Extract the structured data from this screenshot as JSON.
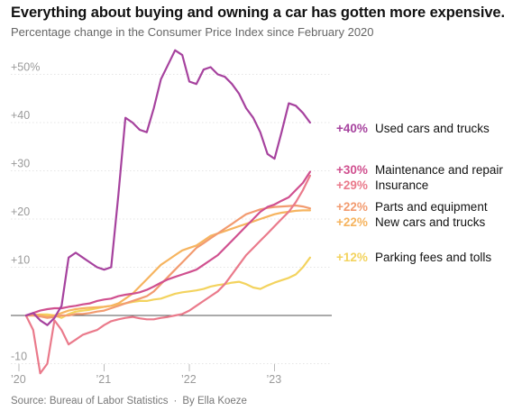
{
  "title": "Everything about buying and owning a car has gotten more expensive.",
  "subtitle": "Percentage change in the Consumer Price Index since February 2020",
  "source": {
    "text": "Source: Bureau of Labor Statistics",
    "byline": "By Ella Koeze"
  },
  "chart_data": {
    "type": "line",
    "title": "Everything about buying and owning a car has gotten more expensive.",
    "subtitle": "Percentage change in the Consumer Price Index since February 2020",
    "xlabel": "",
    "ylabel": "",
    "xlim": [
      2020.083,
      2023.667
    ],
    "ylim": [
      -12,
      57
    ],
    "grid": true,
    "legend": "direct labels at line ends (right)",
    "y_ticks": [
      {
        "value": 50,
        "label": "+50%"
      },
      {
        "value": 40,
        "label": "+40"
      },
      {
        "value": 30,
        "label": "+30"
      },
      {
        "value": 20,
        "label": "+20"
      },
      {
        "value": 10,
        "label": "+10"
      },
      {
        "value": -10,
        "label": "-10"
      }
    ],
    "x_ticks": [
      {
        "value": 2020,
        "label": "’20"
      },
      {
        "value": 2021,
        "label": "’21"
      },
      {
        "value": 2022,
        "label": "’22"
      },
      {
        "value": 2023,
        "label": "’23"
      }
    ],
    "series": [
      {
        "name": "Used cars and trucks",
        "end_label": "+40%",
        "color": "#a6429e",
        "points": [
          [
            2020.083,
            0
          ],
          [
            2020.167,
            0.5
          ],
          [
            2020.25,
            -1
          ],
          [
            2020.333,
            -2
          ],
          [
            2020.417,
            -0.5
          ],
          [
            2020.5,
            2
          ],
          [
            2020.583,
            12
          ],
          [
            2020.667,
            13
          ],
          [
            2020.75,
            12
          ],
          [
            2020.833,
            11
          ],
          [
            2020.917,
            10
          ],
          [
            2021,
            9.5
          ],
          [
            2021.083,
            10
          ],
          [
            2021.167,
            25
          ],
          [
            2021.25,
            41
          ],
          [
            2021.333,
            40
          ],
          [
            2021.417,
            38.5
          ],
          [
            2021.5,
            38
          ],
          [
            2021.583,
            43
          ],
          [
            2021.667,
            49
          ],
          [
            2021.75,
            52
          ],
          [
            2021.833,
            55
          ],
          [
            2021.917,
            54
          ],
          [
            2022,
            48.5
          ],
          [
            2022.083,
            48
          ],
          [
            2022.167,
            51
          ],
          [
            2022.25,
            51.5
          ],
          [
            2022.333,
            50
          ],
          [
            2022.417,
            49.5
          ],
          [
            2022.5,
            48
          ],
          [
            2022.583,
            46
          ],
          [
            2022.667,
            43
          ],
          [
            2022.75,
            41
          ],
          [
            2022.833,
            38
          ],
          [
            2022.917,
            33.5
          ],
          [
            2023,
            32.5
          ],
          [
            2023.083,
            38
          ],
          [
            2023.167,
            44
          ],
          [
            2023.25,
            43.5
          ],
          [
            2023.333,
            42
          ],
          [
            2023.417,
            40
          ]
        ]
      },
      {
        "name": "Maintenance and repair",
        "end_label": "+30%",
        "color": "#d0508f",
        "points": [
          [
            2020.083,
            0
          ],
          [
            2020.167,
            0.5
          ],
          [
            2020.25,
            1
          ],
          [
            2020.333,
            1.3
          ],
          [
            2020.417,
            1.5
          ],
          [
            2020.5,
            1.5
          ],
          [
            2020.583,
            1.8
          ],
          [
            2020.667,
            2
          ],
          [
            2020.75,
            2.3
          ],
          [
            2020.833,
            2.5
          ],
          [
            2020.917,
            3
          ],
          [
            2021,
            3.3
          ],
          [
            2021.083,
            3.5
          ],
          [
            2021.167,
            4
          ],
          [
            2021.25,
            4.3
          ],
          [
            2021.333,
            4.5
          ],
          [
            2021.417,
            4.8
          ],
          [
            2021.5,
            5.3
          ],
          [
            2021.583,
            6
          ],
          [
            2021.667,
            6.8
          ],
          [
            2021.75,
            7.5
          ],
          [
            2021.833,
            8
          ],
          [
            2021.917,
            8.5
          ],
          [
            2022,
            9
          ],
          [
            2022.083,
            9.5
          ],
          [
            2022.167,
            10.5
          ],
          [
            2022.25,
            11.5
          ],
          [
            2022.333,
            12.5
          ],
          [
            2022.417,
            14
          ],
          [
            2022.5,
            15.5
          ],
          [
            2022.583,
            17
          ],
          [
            2022.667,
            18.5
          ],
          [
            2022.75,
            20
          ],
          [
            2022.833,
            21.5
          ],
          [
            2022.917,
            22.5
          ],
          [
            2023,
            23
          ],
          [
            2023.083,
            23.8
          ],
          [
            2023.167,
            24.5
          ],
          [
            2023.25,
            26
          ],
          [
            2023.333,
            27.5
          ],
          [
            2023.417,
            29.8
          ]
        ]
      },
      {
        "name": "Insurance",
        "end_label": "+29%",
        "color": "#ea7a8b",
        "points": [
          [
            2020.083,
            0
          ],
          [
            2020.167,
            -3
          ],
          [
            2020.25,
            -12
          ],
          [
            2020.333,
            -10
          ],
          [
            2020.417,
            -1
          ],
          [
            2020.5,
            -3
          ],
          [
            2020.583,
            -6
          ],
          [
            2020.667,
            -5
          ],
          [
            2020.75,
            -4
          ],
          [
            2020.833,
            -3.5
          ],
          [
            2020.917,
            -3
          ],
          [
            2021,
            -2
          ],
          [
            2021.083,
            -1.2
          ],
          [
            2021.167,
            -0.8
          ],
          [
            2021.25,
            -0.5
          ],
          [
            2021.333,
            -0.3
          ],
          [
            2021.417,
            -0.6
          ],
          [
            2021.5,
            -0.8
          ],
          [
            2021.583,
            -0.8
          ],
          [
            2021.667,
            -0.5
          ],
          [
            2021.75,
            -0.3
          ],
          [
            2021.833,
            0
          ],
          [
            2021.917,
            0.3
          ],
          [
            2022,
            1
          ],
          [
            2022.083,
            2
          ],
          [
            2022.167,
            3
          ],
          [
            2022.25,
            4
          ],
          [
            2022.333,
            5
          ],
          [
            2022.417,
            6.5
          ],
          [
            2022.5,
            8.5
          ],
          [
            2022.583,
            10.5
          ],
          [
            2022.667,
            12.5
          ],
          [
            2022.75,
            14
          ],
          [
            2022.833,
            15.5
          ],
          [
            2022.917,
            17
          ],
          [
            2023,
            18.5
          ],
          [
            2023.083,
            20
          ],
          [
            2023.167,
            21.5
          ],
          [
            2023.25,
            23.5
          ],
          [
            2023.333,
            26
          ],
          [
            2023.417,
            29
          ]
        ]
      },
      {
        "name": "Parts and equipment",
        "end_label": "+22%",
        "color": "#f29b70",
        "points": [
          [
            2020.083,
            0
          ],
          [
            2020.167,
            0
          ],
          [
            2020.25,
            -0.2
          ],
          [
            2020.333,
            -0.5
          ],
          [
            2020.417,
            -0.3
          ],
          [
            2020.5,
            0
          ],
          [
            2020.583,
            0
          ],
          [
            2020.667,
            0.3
          ],
          [
            2020.75,
            0.3
          ],
          [
            2020.833,
            0.5
          ],
          [
            2020.917,
            0.8
          ],
          [
            2021,
            1
          ],
          [
            2021.083,
            1.5
          ],
          [
            2021.167,
            2
          ],
          [
            2021.25,
            2.5
          ],
          [
            2021.333,
            3
          ],
          [
            2021.417,
            3.5
          ],
          [
            2021.5,
            4
          ],
          [
            2021.583,
            5
          ],
          [
            2021.667,
            6.5
          ],
          [
            2021.75,
            8
          ],
          [
            2021.833,
            9.5
          ],
          [
            2021.917,
            11
          ],
          [
            2022,
            12.5
          ],
          [
            2022.083,
            14
          ],
          [
            2022.167,
            15
          ],
          [
            2022.25,
            16
          ],
          [
            2022.333,
            17
          ],
          [
            2022.417,
            18
          ],
          [
            2022.5,
            19
          ],
          [
            2022.583,
            20
          ],
          [
            2022.667,
            21
          ],
          [
            2022.75,
            21.5
          ],
          [
            2022.833,
            22
          ],
          [
            2022.917,
            22.3
          ],
          [
            2023,
            22.5
          ],
          [
            2023.083,
            22.6
          ],
          [
            2023.167,
            22.7
          ],
          [
            2023.25,
            22.8
          ],
          [
            2023.333,
            22.6
          ],
          [
            2023.417,
            22.2
          ]
        ]
      },
      {
        "name": "New cars and trucks",
        "end_label": "+22%",
        "color": "#f6b45f",
        "points": [
          [
            2020.083,
            0
          ],
          [
            2020.167,
            0.2
          ],
          [
            2020.25,
            0.1
          ],
          [
            2020.333,
            -0.2
          ],
          [
            2020.417,
            0
          ],
          [
            2020.5,
            0.5
          ],
          [
            2020.583,
            1
          ],
          [
            2020.667,
            1.3
          ],
          [
            2020.75,
            1.5
          ],
          [
            2020.833,
            1.6
          ],
          [
            2020.917,
            1.7
          ],
          [
            2021,
            1.8
          ],
          [
            2021.083,
            2
          ],
          [
            2021.167,
            2.5
          ],
          [
            2021.25,
            3.5
          ],
          [
            2021.333,
            4.5
          ],
          [
            2021.417,
            6
          ],
          [
            2021.5,
            7.5
          ],
          [
            2021.583,
            9
          ],
          [
            2021.667,
            10.5
          ],
          [
            2021.75,
            11.5
          ],
          [
            2021.833,
            12.5
          ],
          [
            2021.917,
            13.5
          ],
          [
            2022,
            14
          ],
          [
            2022.083,
            14.5
          ],
          [
            2022.167,
            15.5
          ],
          [
            2022.25,
            16.5
          ],
          [
            2022.333,
            17
          ],
          [
            2022.417,
            17.5
          ],
          [
            2022.5,
            18
          ],
          [
            2022.583,
            18.5
          ],
          [
            2022.667,
            19
          ],
          [
            2022.75,
            19.5
          ],
          [
            2022.833,
            20
          ],
          [
            2022.917,
            20.5
          ],
          [
            2023,
            21
          ],
          [
            2023.083,
            21.3
          ],
          [
            2023.167,
            21.5
          ],
          [
            2023.25,
            21.7
          ],
          [
            2023.333,
            21.8
          ],
          [
            2023.417,
            21.8
          ]
        ]
      },
      {
        "name": "Parking fees and tolls",
        "end_label": "+12%",
        "color": "#f3d35e",
        "points": [
          [
            2020.083,
            0
          ],
          [
            2020.167,
            0
          ],
          [
            2020.25,
            0.2
          ],
          [
            2020.333,
            0.2
          ],
          [
            2020.417,
            0
          ],
          [
            2020.5,
            -0.5
          ],
          [
            2020.583,
            0.3
          ],
          [
            2020.667,
            0.8
          ],
          [
            2020.75,
            1
          ],
          [
            2020.833,
            1.2
          ],
          [
            2020.917,
            1.5
          ],
          [
            2021,
            1.8
          ],
          [
            2021.083,
            2
          ],
          [
            2021.167,
            2.3
          ],
          [
            2021.25,
            2.5
          ],
          [
            2021.333,
            2.8
          ],
          [
            2021.417,
            3
          ],
          [
            2021.5,
            3
          ],
          [
            2021.583,
            3.3
          ],
          [
            2021.667,
            3.5
          ],
          [
            2021.75,
            4
          ],
          [
            2021.833,
            4.5
          ],
          [
            2021.917,
            4.8
          ],
          [
            2022,
            5
          ],
          [
            2022.083,
            5.2
          ],
          [
            2022.167,
            5.5
          ],
          [
            2022.25,
            6
          ],
          [
            2022.333,
            6.3
          ],
          [
            2022.417,
            6.5
          ],
          [
            2022.5,
            6.8
          ],
          [
            2022.583,
            7
          ],
          [
            2022.667,
            6.5
          ],
          [
            2022.75,
            5.8
          ],
          [
            2022.833,
            5.5
          ],
          [
            2022.917,
            6.2
          ],
          [
            2023,
            6.8
          ],
          [
            2023.083,
            7.3
          ],
          [
            2023.167,
            7.8
          ],
          [
            2023.25,
            8.5
          ],
          [
            2023.333,
            10
          ],
          [
            2023.417,
            12
          ]
        ]
      }
    ]
  }
}
